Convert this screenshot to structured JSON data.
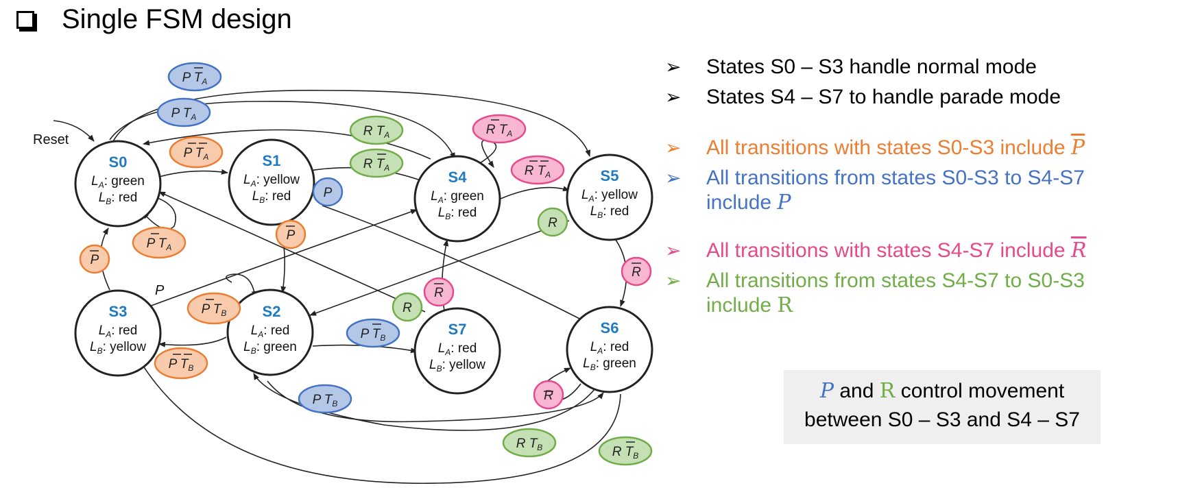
{
  "title": "Single FSM design",
  "reset_label": "Reset",
  "p_label": "P",
  "states": [
    {
      "id": "S0",
      "la": ": green",
      "lb": ": red"
    },
    {
      "id": "S1",
      "la": ": yellow",
      "lb": ": red"
    },
    {
      "id": "S2",
      "la": ": red",
      "lb": ": green"
    },
    {
      "id": "S3",
      "la": ": red",
      "lb": ": yellow"
    },
    {
      "id": "S4",
      "la": ": green",
      "lb": ": red"
    },
    {
      "id": "S5",
      "la": ": yellow",
      "lb": ": red"
    },
    {
      "id": "S6",
      "la": ": red",
      "lb": ": green"
    },
    {
      "id": "S7",
      "la": ": red",
      "lb": ": yellow"
    }
  ],
  "colors": {
    "orange": "#ED7D31",
    "blue": "#4472C4",
    "pink": "#E8498A",
    "green": "#70AD47",
    "state_label": "#1F7BC1"
  },
  "bullets": {
    "b1": "States S0 – S3 handle normal mode",
    "b2": "States S4 – S7 to handle parade mode",
    "b3": "All transitions with states S0-S3 include",
    "b3_var": "P",
    "b4a": "All transitions from states S0-S3 to S4-S7",
    "b4b": "include",
    "b4_var": "P",
    "b5": "All transitions with states S4-S7 include",
    "b5_var": "R",
    "b6a": "All transitions from states S4-S7 to S0-S3",
    "b6b": "include",
    "b6_var": "R"
  },
  "note": {
    "p": "P",
    "and": "and",
    "r": "R",
    "line1_rest": "control movement",
    "line2": "between S0 – S3 and S4 – S7"
  }
}
